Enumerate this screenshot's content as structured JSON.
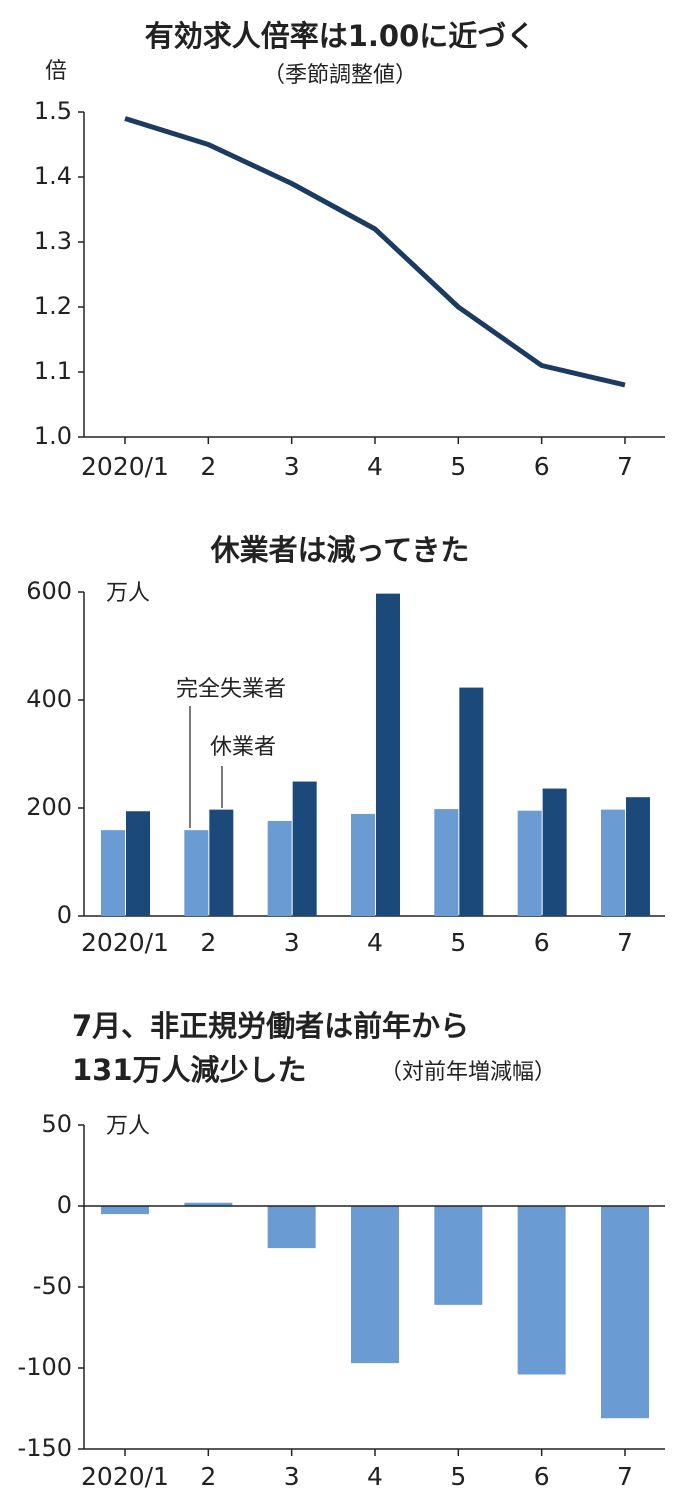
{
  "chart_data": [
    {
      "type": "line",
      "title": "有効求人倍率は1.00に近づく",
      "subtitle": "（季節調整値）",
      "y_unit": "倍",
      "categories": [
        "2020/1",
        "2",
        "3",
        "4",
        "5",
        "6",
        "7"
      ],
      "series": [
        {
          "color": "#1c3b60",
          "values": [
            1.49,
            1.45,
            1.39,
            1.32,
            1.2,
            1.11,
            1.08
          ]
        }
      ],
      "ylim": [
        1,
        1.5
      ],
      "yticks": [
        {
          "value": 1,
          "label": "1.0"
        },
        1.1,
        1.2,
        1.3,
        1.4,
        1.5
      ]
    },
    {
      "type": "bar",
      "title": "休業者は減ってきた",
      "y_unit": "万人",
      "categories": [
        "2020/1",
        "2",
        "3",
        "4",
        "5",
        "6",
        "7"
      ],
      "series": [
        {
          "name": "完全失業者",
          "color": "#6a9bd3",
          "values": [
            159,
            159,
            176,
            189,
            198,
            195,
            197
          ]
        },
        {
          "name": "休業者",
          "color": "#1b4a7a",
          "values": [
            194,
            197,
            249,
            597,
            423,
            236,
            220
          ]
        }
      ],
      "ylim": [
        0,
        600
      ],
      "yticks": [
        0,
        200,
        400,
        600
      ]
    },
    {
      "type": "bar",
      "title": [
        "7月、非正規労働者は前年から",
        "131万人減少した"
      ],
      "subtitle": "（対前年増減幅）",
      "y_unit": "万人",
      "categories": [
        "2020/1",
        "2",
        "3",
        "4",
        "5",
        "6",
        "7"
      ],
      "series": [
        {
          "color": "#6a9bd3",
          "values": [
            -5,
            2,
            -26,
            -97,
            -61,
            -104,
            -131
          ]
        }
      ],
      "ylim": [
        -150,
        50
      ],
      "yticks": [
        50,
        0,
        -50,
        -100,
        -150
      ]
    }
  ]
}
